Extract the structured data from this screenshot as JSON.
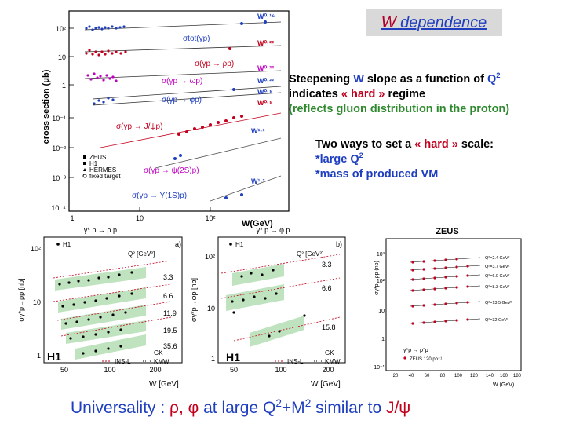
{
  "title": {
    "w_letter": "W",
    "rest": " dependence"
  },
  "text1": {
    "line1_a": "Steepening ",
    "line1_w": "W",
    "line1_b": " slope as a function of ",
    "line1_q": "Q",
    "line1_q_sup": "2",
    "line2_a": "indicates ",
    "line2_hard": "« hard »",
    "line2_b": " regime",
    "line3": "(reflects gluon distribution in the proton)"
  },
  "text2": {
    "line1_a": "Two ways to set a ",
    "line1_hard": "« hard »",
    "line1_b": " scale:",
    "line2": "*large Q",
    "line2_sup": "2",
    "line3": "*mass of produced VM"
  },
  "bottom": {
    "a": "Universality : ",
    "greek": "ρ, φ",
    "b": " at large ",
    "q": "Q",
    "q_sup": "2",
    "plus": "+M",
    "m_sup": "2",
    "c": " similar to ",
    "jpsi": "J/ψ"
  },
  "colors": {
    "blue": "#1f3fbf",
    "red": "#c2001d",
    "green": "#2f8a2f",
    "band": "#bfe3bf"
  },
  "plot_main": {
    "ylabel": "cross section (μb)",
    "xlabel": "W(GeV)",
    "xticks": [
      "1",
      "10",
      "10²"
    ],
    "yticks": [
      "10²",
      "10",
      "1",
      "10⁻¹",
      "10⁻²",
      "10⁻³",
      "10⁻⁴"
    ],
    "powers": [
      "W⁰·¹⁶",
      "W⁰·²²",
      "W⁰·²²",
      "W⁰·²²",
      "W⁰·⁸",
      "W⁰·⁸",
      "W¹·¹",
      "W¹·²"
    ],
    "labels": [
      "σtot(γp)",
      "σ(γp → ρp)",
      "σ(γp → ωp)",
      "σ(γp → φp)",
      "σ(γp → J/ψp)",
      "σ(γp → ψ(2S)p)",
      "σ(γp → Υ(1S)p)"
    ],
    "legend": [
      "ZEUS",
      "H1",
      "HERMES",
      "fixed target"
    ]
  },
  "plot_a": {
    "header": "γ* p → ρ p",
    "panel": "a)",
    "ylabel": "σγ*p→ρp [nb]",
    "xlabel": "W [GeV]",
    "tag": "H1",
    "legend_h1": "H1",
    "q2_header": "Q² [GeV²]",
    "q2": [
      "3.3",
      "6.6",
      "11.9",
      "19.5",
      "35.6"
    ],
    "xticks": [
      "50",
      "100",
      "200"
    ],
    "yticks": [
      "10²",
      "10",
      "1"
    ],
    "model_gk": "GK",
    "model_insl": "INS-L",
    "model_kmw": "KMW"
  },
  "plot_b": {
    "header": "γ* p → φ p",
    "panel": "b)",
    "ylabel": "σγ*p→φp [nb]",
    "xlabel": "W [GeV]",
    "tag": "H1",
    "legend_h1": "H1",
    "q2_header": "Q² [GeV²]",
    "q2": [
      "3.3",
      "6.6",
      "15.8"
    ],
    "xticks": [
      "50",
      "100",
      "200"
    ],
    "yticks": [
      "10²",
      "10",
      "1"
    ],
    "model_gk": "GK",
    "model_insl": "INS-L",
    "model_kmw": "KMW"
  },
  "plot_c": {
    "header": "ZEUS",
    "ylabel": "σγ*p→ρp (nb)",
    "xlabel": "W (GeV)",
    "q2": [
      "Q²=2.4 GeV²",
      "Q²=3.7 GeV²",
      "Q²=6.0 GeV²",
      "Q²=8.3 GeV²",
      "Q²=13.5 GeV²",
      "Q²=32 GeV²"
    ],
    "legend1": "γ*p → ρ°p",
    "legend2": "ZEUS 120 pb⁻¹",
    "xticks": [
      "20",
      "40",
      "60",
      "80",
      "100",
      "120",
      "140",
      "160",
      "180"
    ],
    "yticks": [
      "10³",
      "10²",
      "10",
      "1",
      "10⁻¹"
    ]
  }
}
